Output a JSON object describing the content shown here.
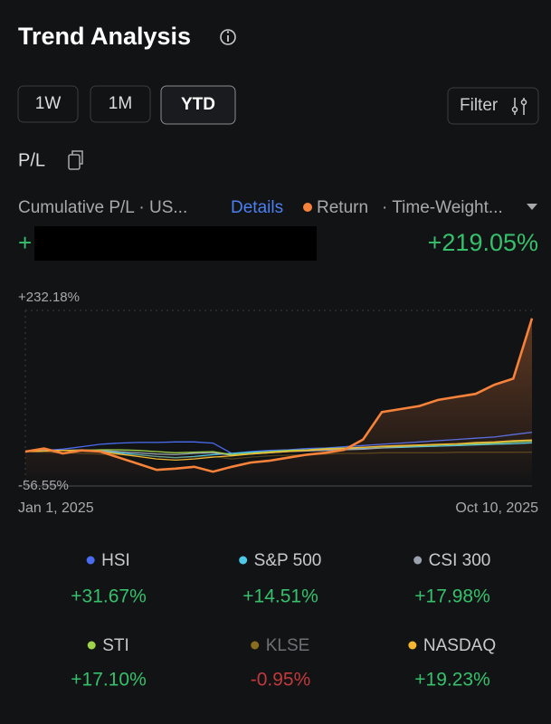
{
  "header": {
    "title": "Trend Analysis"
  },
  "periods": [
    "1W",
    "1M",
    "YTD"
  ],
  "filter": "Filter",
  "section": "P/L",
  "toolbar": {
    "metric": "Cumulative P/L · US...",
    "details": "Details",
    "mode": "· Time-Weight..."
  },
  "pl_sign": "+",
  "chart_data": {
    "type": "line",
    "categories": [
      "Jan 1, 2025",
      null,
      null,
      null,
      null,
      null,
      null,
      null,
      null,
      null,
      null,
      null,
      null,
      null,
      null,
      null,
      null,
      null,
      null,
      null,
      null,
      null,
      null,
      null,
      null,
      null,
      null,
      "Oct 10, 2025"
    ],
    "ylim": [
      -56.55,
      232.18
    ],
    "yticks": [
      {
        "value": -56.55,
        "label": "-56.55%"
      },
      {
        "value": 232.18,
        "label": "+232.18%"
      }
    ],
    "series": [
      {
        "name": "HSI",
        "color": "#4a6cf0",
        "values": [
          0,
          2,
          4,
          8,
          12,
          14,
          15,
          15,
          16,
          16,
          14,
          -3,
          0,
          2,
          3,
          5,
          6,
          8,
          10,
          12,
          14,
          16,
          18,
          20,
          22,
          24,
          28,
          31.67
        ],
        "total": {
          "value": 31.67,
          "label": "+31.67%"
        }
      },
      {
        "name": "S&P 500",
        "color": "#4cc9e8",
        "values": [
          0,
          1,
          2,
          2,
          1,
          -2,
          -5,
          -8,
          -10,
          -8,
          -5,
          -3,
          -1,
          0,
          1,
          2,
          3,
          4,
          5,
          6,
          7,
          8,
          9,
          10,
          11,
          12,
          13,
          14.51
        ],
        "total": {
          "value": 14.51,
          "label": "+14.51%"
        }
      },
      {
        "name": "CSI 300",
        "color": "#9aa3ad",
        "values": [
          0,
          1,
          2,
          3,
          2,
          0,
          -2,
          -4,
          -5,
          -3,
          -2,
          -6,
          -4,
          -2,
          0,
          1,
          2,
          3,
          4,
          6,
          8,
          10,
          11,
          12,
          14,
          15,
          16,
          17.98
        ],
        "total": {
          "value": 17.98,
          "label": "+17.98%"
        }
      },
      {
        "name": "STI",
        "color": "#9fd34a",
        "values": [
          0,
          1,
          2,
          2,
          3,
          3,
          2,
          0,
          -2,
          -1,
          0,
          -5,
          -3,
          0,
          2,
          3,
          5,
          6,
          7,
          8,
          9,
          10,
          11,
          12,
          13,
          14,
          16,
          17.1
        ],
        "total": {
          "value": 17.1,
          "label": "+17.10%"
        }
      },
      {
        "name": "KLSE",
        "color": "#8a6d1f",
        "active": false,
        "values": [
          0,
          -1,
          -2,
          -3,
          -4,
          -5,
          -6,
          -8,
          -10,
          -9,
          -8,
          -12,
          -9,
          -7,
          -6,
          -5,
          -4,
          -3,
          -3,
          -2,
          -2,
          -2,
          -2,
          -1,
          -1,
          -1,
          -1,
          -0.95
        ],
        "total": {
          "value": -0.95,
          "label": "-0.95%"
        }
      },
      {
        "name": "NASDAQ",
        "color": "#f5b731",
        "values": [
          0,
          1,
          2,
          1,
          0,
          -4,
          -8,
          -12,
          -14,
          -12,
          -9,
          -7,
          -4,
          -2,
          0,
          2,
          4,
          5,
          7,
          9,
          10,
          11,
          12,
          13,
          15,
          16,
          18,
          19.23
        ],
        "total": {
          "value": 19.23,
          "label": "+19.23%"
        }
      },
      {
        "name": "Return",
        "color": "#f7823a",
        "values": [
          0,
          5,
          -3,
          2,
          0,
          -10,
          -20,
          -30,
          -28,
          -25,
          -33,
          -25,
          -18,
          -15,
          -10,
          -5,
          -2,
          3,
          20,
          65,
          70,
          75,
          85,
          90,
          95,
          110,
          120,
          219.05
        ],
        "total": {
          "value": 219.05,
          "label": "+219.05%"
        }
      }
    ]
  }
}
